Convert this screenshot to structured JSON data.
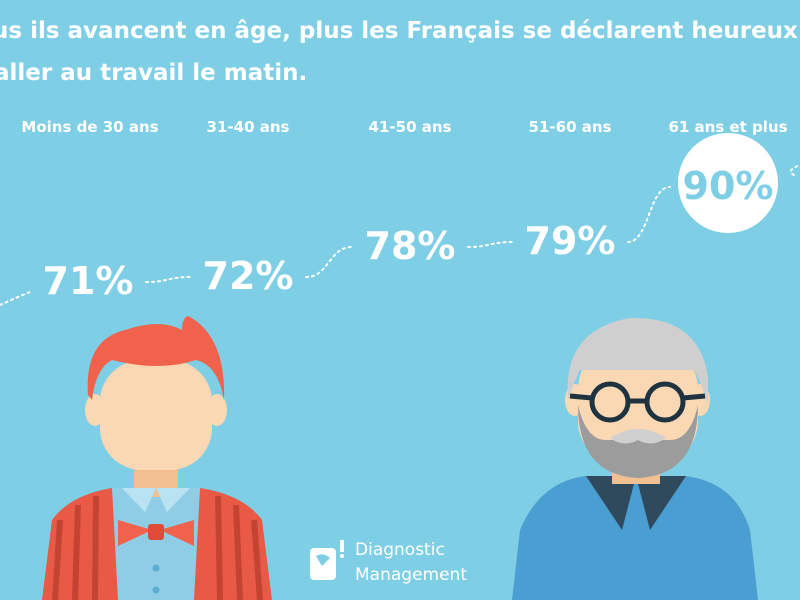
{
  "title": {
    "line1": "us ils avancent en âge, plus les Français se déclarent heureux",
    "line2": "aller au travail le matin."
  },
  "chart_data": {
    "type": "line",
    "categories": [
      "Moins de 30 ans",
      "31-40 ans",
      "41-50 ans",
      "51-60 ans",
      "61 ans et plus"
    ],
    "values": [
      71,
      72,
      78,
      79,
      90
    ],
    "value_labels": [
      "71%",
      "72%",
      "78%",
      "79%",
      "90%"
    ],
    "title": "us ils avancent en âge, plus les Français se déclarent heureux aller au travail le matin.",
    "grid": false,
    "legend": "none",
    "highlight_category": "61 ans et plus"
  },
  "logo": {
    "line1": "Diagnostic",
    "line2": "Management"
  },
  "colors": {
    "background": "#7ecfe5",
    "text": "#ffffff",
    "young_hair": "#f0624c",
    "skin": "#fad8b4",
    "vest": "#e85a45",
    "bow_tie": "#f0624c",
    "old_sweater": "#4a9ed1",
    "old_hair": "#cfcfcf",
    "beard": "#9c9c9c",
    "glasses": "#1f3240"
  },
  "icons": [
    "young-man-illustration",
    "old-man-illustration",
    "logo-icon"
  ]
}
